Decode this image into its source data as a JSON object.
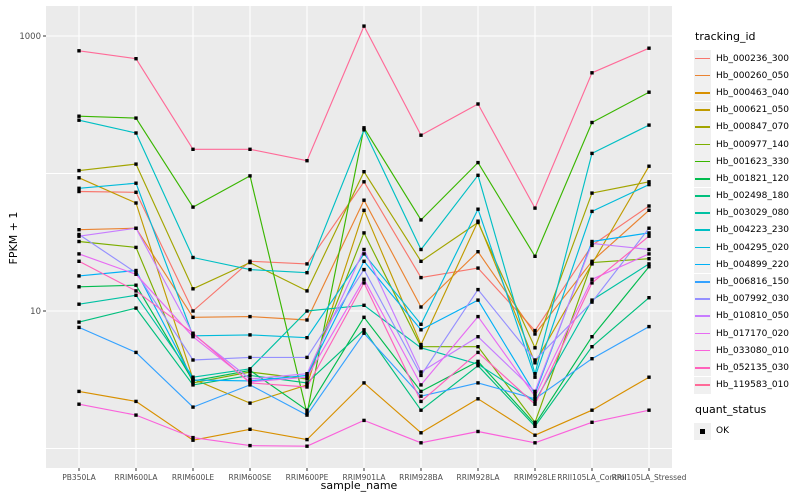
{
  "chart_data": {
    "type": "line",
    "title": "",
    "xlabel": "sample_name",
    "ylabel": "FPKM + 1",
    "y_scale": "log10",
    "y_tick_labels": [
      "1000",
      "10"
    ],
    "y_tick_values": [
      1000,
      10
    ],
    "y_gridline_values": [
      1,
      10,
      100,
      1000
    ],
    "ylim": [
      0.72,
      1650
    ],
    "grid": true,
    "legend_position": "right",
    "categories": [
      "PB350LA",
      "RRIM600LA",
      "RRIM600LE",
      "RRIM600SE",
      "RRIM600PE",
      "RRIM901LA",
      "RRIM928BA",
      "RRIM928LA",
      "RRIM928LE",
      "RRII105LA_Control",
      "RRII105LA_Stressed"
    ],
    "series": [
      {
        "name": "Hb_000236_300",
        "color": "#F8766D",
        "values": [
          74,
          73,
          10,
          23,
          22,
          87,
          17.5,
          20.5,
          7.2,
          30,
          58
        ]
      },
      {
        "name": "Hb_000260_050",
        "color": "#EA8331",
        "values": [
          39,
          40,
          9,
          9.1,
          8.6,
          64,
          10.7,
          27,
          6.8,
          23,
          54
        ]
      },
      {
        "name": "Hb_000463_040",
        "color": "#D89000",
        "values": [
          2.6,
          2.2,
          1.15,
          1.38,
          1.16,
          3,
          1.3,
          2.3,
          1.25,
          1.9,
          3.3
        ]
      },
      {
        "name": "Hb_000621_050",
        "color": "#C09B00",
        "values": [
          93,
          61,
          3.2,
          2.14,
          2.9,
          54,
          5.7,
          45,
          4.2,
          22,
          113
        ]
      },
      {
        "name": "Hb_000847_070",
        "color": "#A3A500",
        "values": [
          105,
          117,
          14.5,
          22.5,
          14,
          103,
          23,
          44,
          5.4,
          72,
          87
        ]
      },
      {
        "name": "Hb_000977_140",
        "color": "#7CAE00",
        "values": [
          32,
          29,
          3,
          3.6,
          3.2,
          37,
          5.5,
          5.5,
          1.55,
          22.5,
          24
        ]
      },
      {
        "name": "Hb_001623_330",
        "color": "#39B600",
        "values": [
          261,
          253,
          57,
          96,
          1.8,
          215,
          46,
          120,
          25,
          235,
          390
        ]
      },
      {
        "name": "Hb_001821_120",
        "color": "#00BB4E",
        "values": [
          15,
          15.4,
          3.1,
          3.7,
          1.9,
          9,
          2.6,
          4.3,
          1.5,
          6.5,
          21
        ]
      },
      {
        "name": "Hb_002498_180",
        "color": "#00BF7D",
        "values": [
          8.3,
          10.5,
          2.9,
          3.4,
          3,
          7.3,
          1.9,
          4,
          1.45,
          5.5,
          12.5
        ]
      },
      {
        "name": "Hb_003029_080",
        "color": "#00C1A3",
        "values": [
          11.2,
          13,
          3.3,
          3.8,
          10,
          11,
          5.4,
          4.1,
          2.2,
          12,
          22
        ]
      },
      {
        "name": "Hb_004223_230",
        "color": "#00BFC4",
        "values": [
          244,
          197,
          24.5,
          20,
          19,
          208,
          28,
          97,
          3.5,
          140,
          225
        ]
      },
      {
        "name": "Hb_004295_020",
        "color": "#00BBDA",
        "values": [
          78,
          85,
          6.6,
          6.7,
          6.4,
          26,
          8,
          55,
          3.3,
          53,
          83
        ]
      },
      {
        "name": "Hb_004899_220",
        "color": "#00B0F6",
        "values": [
          18,
          19.7,
          3.15,
          3.1,
          3.4,
          23,
          7.3,
          12,
          2.5,
          32,
          37
        ]
      },
      {
        "name": "Hb_006816_150",
        "color": "#35A2FF",
        "values": [
          7.6,
          5,
          2,
          2.9,
          1.75,
          6.9,
          2.4,
          3,
          2.3,
          4.5,
          7.7
        ]
      },
      {
        "name": "Hb_007992_030",
        "color": "#9590FF",
        "values": [
          36,
          19,
          4.4,
          4.6,
          4.6,
          20,
          3.4,
          14.3,
          4.4,
          11.6,
          40
        ]
      },
      {
        "name": "Hb_010810_050",
        "color": "#C77CFF",
        "values": [
          35,
          40,
          6.8,
          3.2,
          3.5,
          28,
          3.6,
          6.5,
          2.6,
          31,
          28
        ]
      },
      {
        "name": "Hb_017170_020",
        "color": "#E76BF3",
        "values": [
          26,
          18.5,
          6.5,
          3.05,
          3.3,
          17,
          2.9,
          9.1,
          2.4,
          17,
          26
        ]
      },
      {
        "name": "Hb_033080_010",
        "color": "#FA62DB",
        "values": [
          2.1,
          1.75,
          1.2,
          1.05,
          1.04,
          1.6,
          1.1,
          1.33,
          1.1,
          1.55,
          1.9
        ]
      },
      {
        "name": "Hb_052135_030",
        "color": "#FF62BC",
        "values": [
          23,
          14,
          6.9,
          3,
          2.8,
          16,
          2.2,
          5,
          2.1,
          16,
          35
        ]
      },
      {
        "name": "Hb_119583_010",
        "color": "#FF6A98",
        "values": [
          780,
          684,
          150,
          150,
          124,
          1180,
          190,
          320,
          56,
          540,
          815
        ]
      }
    ],
    "legend": {
      "title": "tracking_id"
    },
    "quant_legend": {
      "title": "quant_status",
      "ok_label": "OK",
      "marker_color": "#000000"
    },
    "colors": {
      "panel_bg": "#EBEBEB",
      "gridline": "#FFFFFF",
      "tick_mark": "#333333",
      "tick_label": "#4D4D4D",
      "axis_title": "#000000",
      "legend_key_bg": "#F0F0F0",
      "point": "#000000"
    }
  }
}
